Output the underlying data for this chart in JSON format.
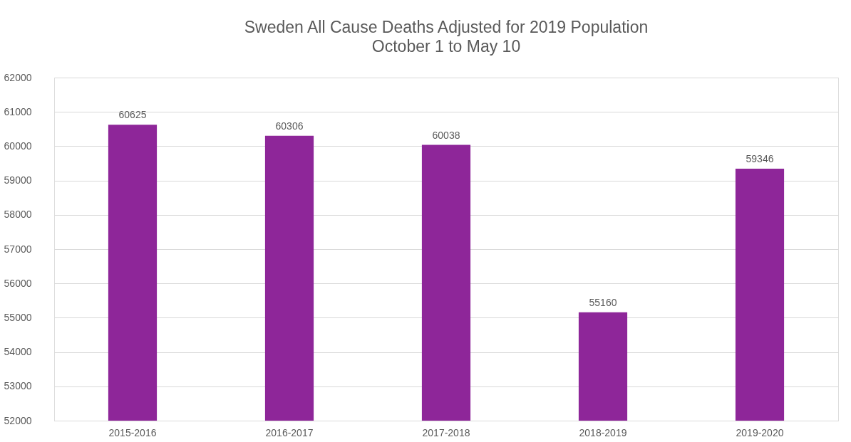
{
  "chart_data": {
    "type": "bar",
    "title": "Sweden All Cause Deaths Adjusted for 2019 Population",
    "subtitle": "October 1 to May 10",
    "categories": [
      "2015-2016",
      "2016-2017",
      "2017-2018",
      "2018-2019",
      "2019-2020"
    ],
    "values": [
      60625,
      60306,
      60038,
      55160,
      59346
    ],
    "color": "#8e2699",
    "ylim": [
      52000,
      62000
    ],
    "yticks": [
      52000,
      53000,
      54000,
      55000,
      56000,
      57000,
      58000,
      59000,
      60000,
      61000,
      62000
    ],
    "grid": "y",
    "data_labels": true
  }
}
